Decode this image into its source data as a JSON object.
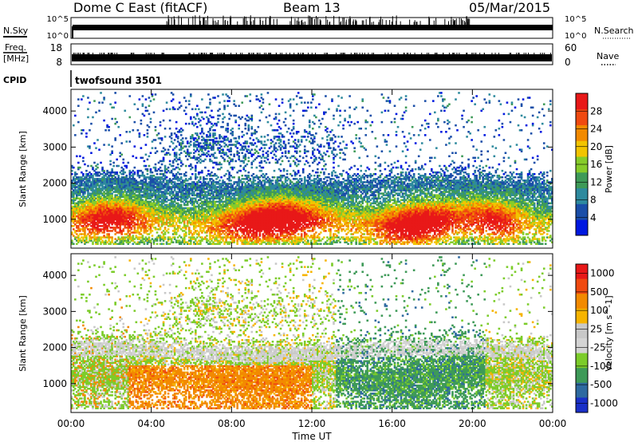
{
  "header": {
    "radar_title": "Dome C East (fitACF)",
    "beam_label": "Beam 13",
    "date_label": "05/Mar/2015"
  },
  "panels": {
    "nsky_label": "N.Sky",
    "nsky_ticks": [
      "10^5",
      "10^0"
    ],
    "nsearch_label": "N.Search",
    "nsearch_ticks": [
      "10^5",
      "10^0"
    ],
    "freq_label_line1": "Freq.",
    "freq_label_line2": "[MHz]",
    "freq_ticks": [
      "18",
      "8"
    ],
    "nave_label": "Nave",
    "nave_ticks": [
      "60",
      "0"
    ],
    "cpid_label": "CPID",
    "cpid_value": "twofsound 3501"
  },
  "colors": {
    "power_scale": [
      "#0018e0",
      "#1a4ea8",
      "#2e8a9e",
      "#3e9a58",
      "#86cc2a",
      "#f2c400",
      "#f28a00",
      "#f04a10",
      "#e81818"
    ],
    "velocity_scale": [
      "#e81818",
      "#f04a10",
      "#f28a00",
      "#f6b400",
      "#c8c8c8",
      "#d4d4d4",
      "#7ccc2a",
      "#3e9a58",
      "#2e6aa0",
      "#1a30c8"
    ]
  },
  "chart_data": [
    {
      "type": "heatmap",
      "name": "power",
      "xlabel": "",
      "ylabel": "Slant Range [km]",
      "x_ticks": [
        "00:00",
        "04:00",
        "08:00",
        "12:00",
        "16:00",
        "20:00",
        "00:00"
      ],
      "y_ticks": [
        1000,
        2000,
        3000,
        4000
      ],
      "ylim": [
        200,
        4600
      ],
      "colorbar_label": "Power [dB]",
      "colorbar_ticks": [
        "4",
        "8",
        "12",
        "16",
        "20",
        "24",
        "28"
      ],
      "colorbar_range": [
        0,
        32
      ]
    },
    {
      "type": "heatmap",
      "name": "velocity",
      "xlabel": "Time UT",
      "ylabel": "Slant Range [km]",
      "x_ticks": [
        "00:00",
        "04:00",
        "08:00",
        "12:00",
        "16:00",
        "20:00",
        "00:00"
      ],
      "y_ticks": [
        1000,
        2000,
        3000,
        4000
      ],
      "ylim": [
        200,
        4600
      ],
      "colorbar_label": "Velocity [m s^-1]",
      "colorbar_ticks": [
        "1000",
        "500",
        "100",
        "25",
        "-25",
        "-100",
        "-500",
        "-1000"
      ]
    }
  ]
}
